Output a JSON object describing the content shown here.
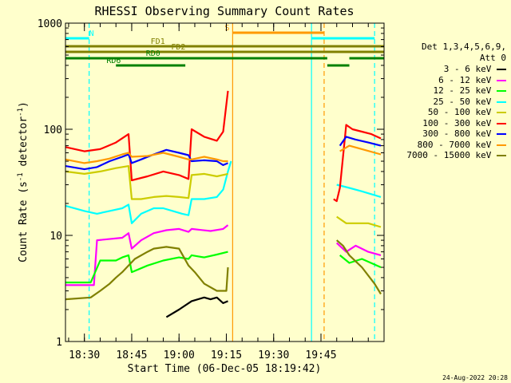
{
  "chart_data": {
    "type": "line",
    "title": "RHESSI Observing Summary Count Rates",
    "xlabel": "Start Time (06-Dec-05 18:19:42)",
    "ylabel_main": "Count Rate (s",
    "ylabel_sup1": "-1",
    "ylabel_mid": " detector",
    "ylabel_sup2": "-1",
    "ylabel_end": ")",
    "y_scale": "log",
    "ylim": [
      1,
      1000
    ],
    "xlim_minutes": [
      -6,
      95
    ],
    "x_ticks": [
      {
        "minute": 0,
        "label": "18:30"
      },
      {
        "minute": 15,
        "label": "18:45"
      },
      {
        "minute": 30,
        "label": "19:00"
      },
      {
        "minute": 45,
        "label": "19:15"
      },
      {
        "minute": 60,
        "label": "19:30"
      },
      {
        "minute": 75,
        "label": "19:45"
      }
    ],
    "y_ticks": [
      {
        "value": 1,
        "label": "1"
      },
      {
        "value": 10,
        "label": "10"
      },
      {
        "value": 100,
        "label": "100"
      },
      {
        "value": 1000,
        "label": "1000"
      }
    ],
    "legend_header": [
      "Det 1,3,4,5,6,9,",
      "Att 0"
    ],
    "series": [
      {
        "name": "3 - 6 keV",
        "color": "#000000",
        "points": [
          [
            26,
            1.7
          ],
          [
            30,
            2.0
          ],
          [
            34,
            2.4
          ],
          [
            38,
            2.6
          ],
          [
            40,
            2.5
          ],
          [
            42,
            2.6
          ],
          [
            44,
            2.3
          ],
          [
            45.5,
            2.4
          ]
        ]
      },
      {
        "name": "6 - 12 keV",
        "color": "#ff00ff",
        "points": [
          [
            -6,
            3.4
          ],
          [
            3,
            3.4
          ],
          [
            4,
            9.0
          ],
          [
            12,
            9.5
          ],
          [
            14,
            10.5
          ],
          [
            15,
            7.5
          ],
          [
            18,
            9.0
          ],
          [
            22,
            10.5
          ],
          [
            26,
            11.2
          ],
          [
            30,
            11.5
          ],
          [
            33,
            10.8
          ],
          [
            34,
            11.5
          ],
          [
            40,
            11.0
          ],
          [
            44,
            11.5
          ],
          [
            45.5,
            12.5
          ],
          [
            80,
            8.5
          ],
          [
            83,
            7.0
          ],
          [
            86,
            8.0
          ],
          [
            90,
            7.0
          ],
          [
            94,
            6.5
          ]
        ]
      },
      {
        "name": "12 - 25 keV",
        "color": "#00ff00",
        "points": [
          [
            -6,
            3.6
          ],
          [
            2,
            3.6
          ],
          [
            5,
            5.8
          ],
          [
            10,
            5.8
          ],
          [
            12,
            6.2
          ],
          [
            14,
            6.5
          ],
          [
            15,
            4.5
          ],
          [
            20,
            5.2
          ],
          [
            25,
            5.8
          ],
          [
            30,
            6.2
          ],
          [
            33,
            6.0
          ],
          [
            34,
            6.5
          ],
          [
            38,
            6.2
          ],
          [
            42,
            6.6
          ],
          [
            45.5,
            7.0
          ],
          [
            81,
            6.5
          ],
          [
            84,
            5.5
          ],
          [
            88,
            6.0
          ],
          [
            94,
            5.0
          ]
        ]
      },
      {
        "name": "25 - 50 keV",
        "color": "#00ffff",
        "points": [
          [
            -6,
            19
          ],
          [
            0,
            17
          ],
          [
            4,
            16
          ],
          [
            8,
            17
          ],
          [
            12,
            18
          ],
          [
            14,
            19.5
          ],
          [
            15,
            13
          ],
          [
            18,
            16
          ],
          [
            22,
            18
          ],
          [
            25,
            18
          ],
          [
            28,
            17
          ],
          [
            31,
            16
          ],
          [
            33,
            15.5
          ],
          [
            34,
            22
          ],
          [
            38,
            22
          ],
          [
            42,
            23
          ],
          [
            44,
            27
          ],
          [
            45.5,
            40
          ],
          [
            46.5,
            50
          ],
          [
            80,
            30
          ],
          [
            84,
            28
          ],
          [
            88,
            26
          ],
          [
            94,
            23
          ]
        ]
      },
      {
        "name": "50 - 100 keV",
        "color": "#cccc00",
        "points": [
          [
            -6,
            40
          ],
          [
            0,
            38
          ],
          [
            5,
            40
          ],
          [
            10,
            43
          ],
          [
            14,
            45
          ],
          [
            15,
            22
          ],
          [
            18,
            22
          ],
          [
            22,
            23
          ],
          [
            26,
            23.5
          ],
          [
            30,
            23
          ],
          [
            33,
            22.5
          ],
          [
            34,
            37
          ],
          [
            38,
            38
          ],
          [
            42,
            36
          ],
          [
            45.5,
            38
          ],
          [
            80,
            15
          ],
          [
            83,
            13
          ],
          [
            86,
            13
          ],
          [
            90,
            13
          ],
          [
            94,
            12
          ]
        ]
      },
      {
        "name": "100 - 300 keV",
        "color": "#ff0000",
        "points": [
          [
            -6,
            68
          ],
          [
            0,
            62
          ],
          [
            5,
            65
          ],
          [
            10,
            75
          ],
          [
            14,
            90
          ],
          [
            15,
            33
          ],
          [
            20,
            36
          ],
          [
            25,
            40
          ],
          [
            30,
            37
          ],
          [
            33,
            34
          ],
          [
            34,
            100
          ],
          [
            38,
            85
          ],
          [
            42,
            78
          ],
          [
            44,
            95
          ],
          [
            45.5,
            230
          ],
          [
            79,
            22
          ],
          [
            80,
            21
          ],
          [
            81,
            28
          ],
          [
            83,
            110
          ],
          [
            85,
            100
          ],
          [
            88,
            95
          ],
          [
            91,
            90
          ],
          [
            94,
            82
          ]
        ]
      },
      {
        "name": "300 - 800 keV",
        "color": "#0000ff",
        "points": [
          [
            -6,
            45
          ],
          [
            0,
            42
          ],
          [
            4,
            44
          ],
          [
            8,
            50
          ],
          [
            12,
            55
          ],
          [
            14,
            58
          ],
          [
            15,
            48
          ],
          [
            18,
            52
          ],
          [
            22,
            58
          ],
          [
            26,
            64
          ],
          [
            30,
            60
          ],
          [
            33,
            57
          ],
          [
            34,
            50
          ],
          [
            38,
            51
          ],
          [
            42,
            50
          ],
          [
            44,
            46
          ],
          [
            45.5,
            48
          ],
          [
            81,
            70
          ],
          [
            83,
            85
          ],
          [
            86,
            80
          ],
          [
            90,
            75
          ],
          [
            94,
            70
          ]
        ]
      },
      {
        "name": "800 - 7000 keV",
        "color": "#ff9900",
        "points": [
          [
            -6,
            52
          ],
          [
            0,
            48
          ],
          [
            4,
            50
          ],
          [
            8,
            53
          ],
          [
            12,
            58
          ],
          [
            14,
            60
          ],
          [
            15,
            55
          ],
          [
            20,
            56
          ],
          [
            25,
            60
          ],
          [
            30,
            55
          ],
          [
            33,
            52
          ],
          [
            34,
            52
          ],
          [
            38,
            55
          ],
          [
            42,
            52
          ],
          [
            44,
            50
          ],
          [
            45.5,
            50
          ],
          [
            81,
            62
          ],
          [
            84,
            70
          ],
          [
            88,
            65
          ],
          [
            94,
            58
          ]
        ]
      },
      {
        "name": "7000 - 15000 keV",
        "color": "#808000",
        "points": [
          [
            -6,
            2.5
          ],
          [
            2,
            2.6
          ],
          [
            5,
            3.0
          ],
          [
            8,
            3.5
          ],
          [
            10,
            4.0
          ],
          [
            12,
            4.5
          ],
          [
            14,
            5.2
          ],
          [
            16,
            6.0
          ],
          [
            20,
            7.0
          ],
          [
            22,
            7.5
          ],
          [
            26,
            7.8
          ],
          [
            30,
            7.5
          ],
          [
            33,
            5.2
          ],
          [
            35,
            4.5
          ],
          [
            38,
            3.5
          ],
          [
            42,
            3.0
          ],
          [
            45,
            3.0
          ],
          [
            45.5,
            5.0
          ],
          [
            80,
            9.0
          ],
          [
            82,
            8.0
          ],
          [
            84,
            6.5
          ],
          [
            88,
            5.0
          ],
          [
            92,
            3.5
          ],
          [
            94,
            2.8
          ]
        ]
      }
    ],
    "vertical_lines": [
      {
        "minute": 1.5,
        "color": "#00ffff",
        "dashed": true
      },
      {
        "minute": 47,
        "color": "#ff9900",
        "dashed": false
      },
      {
        "minute": 72,
        "color": "#00ffff",
        "dashed": false
      },
      {
        "minute": 76,
        "color": "#ff9900",
        "dashed": true
      },
      {
        "minute": 92,
        "color": "#00ffff",
        "dashed": true
      }
    ],
    "flag_bars": [
      {
        "label": "N",
        "color": "#00ffff",
        "segments": [
          [
            -6,
            1.5
          ],
          [
            72,
            92
          ]
        ],
        "level": 48,
        "label_minute": 1.5
      },
      {
        "label": "S",
        "color": "#ff9900",
        "segments": [
          [
            47,
            76
          ]
        ],
        "level": 41,
        "label_minute": 44.5
      },
      {
        "label": "FD1",
        "color": "#808000",
        "segments": [
          [
            -6,
            95
          ]
        ],
        "level": 58,
        "label_minute": 21
      },
      {
        "label": "FD2",
        "color": "#808000",
        "segments": [
          [
            -6,
            95
          ]
        ],
        "level": 65,
        "label_minute": 27.5
      },
      {
        "label": "RD0",
        "color": "#008000",
        "segments": [
          [
            -6,
            77
          ],
          [
            84,
            95
          ]
        ],
        "level": 73,
        "label_minute": 19.5
      },
      {
        "label": "RD6",
        "color": "#008000",
        "segments": [
          [
            10,
            32
          ],
          [
            77,
            84
          ]
        ],
        "level": 82,
        "label_minute": 7
      }
    ],
    "timestamp": "24-Aug-2022 20:28"
  }
}
